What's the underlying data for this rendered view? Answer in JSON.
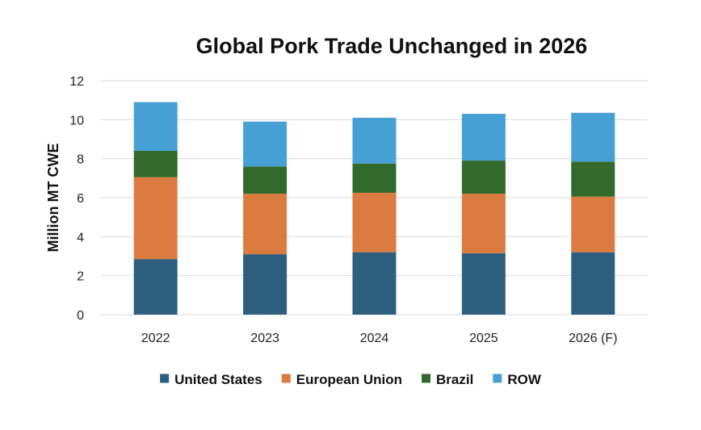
{
  "chart_data": {
    "type": "bar",
    "stacked": true,
    "title": "Global Pork Trade Unchanged in 2026",
    "xlabel": "",
    "ylabel": "Million MT CWE",
    "ylim": [
      0,
      12
    ],
    "yticks": [
      0,
      2,
      4,
      6,
      8,
      10,
      12
    ],
    "grid": true,
    "legend_position": "bottom",
    "categories": [
      "2022",
      "2023",
      "2024",
      "2025",
      "2026 (F)"
    ],
    "series": [
      {
        "name": "United States",
        "color": "#2e5f7f",
        "values": [
          2.85,
          3.1,
          3.2,
          3.15,
          3.2
        ]
      },
      {
        "name": "European Union",
        "color": "#dc7b3f",
        "values": [
          4.2,
          3.1,
          3.05,
          3.05,
          2.85
        ]
      },
      {
        "name": "Brazil",
        "color": "#326a2b",
        "values": [
          1.35,
          1.4,
          1.5,
          1.7,
          1.8
        ]
      },
      {
        "name": "ROW",
        "color": "#47a0d4",
        "values": [
          2.5,
          2.3,
          2.35,
          2.4,
          2.5
        ]
      }
    ]
  }
}
